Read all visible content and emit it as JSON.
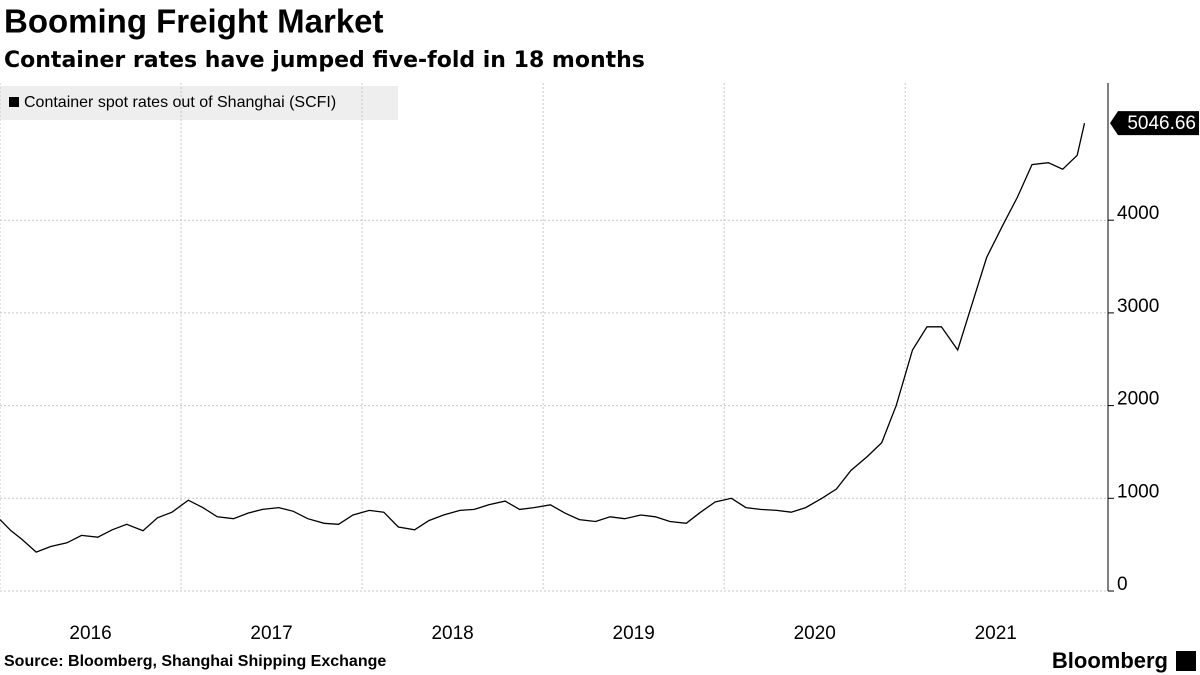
{
  "chart_data": {
    "type": "line",
    "title": "Booming Freight Market",
    "subtitle": "Container rates have jumped five-fold in 18 months",
    "source": "Source: Bloomberg, Shanghai Shipping Exchange",
    "brand": "Bloomberg",
    "x": [
      2016.0,
      2016.06,
      2016.12,
      2016.2,
      2016.28,
      2016.37,
      2016.45,
      2016.54,
      2016.62,
      2016.7,
      2016.79,
      2016.87,
      2016.95,
      2017.04,
      2017.12,
      2017.2,
      2017.29,
      2017.37,
      2017.45,
      2017.54,
      2017.62,
      2017.7,
      2017.79,
      2017.87,
      2017.95,
      2018.04,
      2018.12,
      2018.2,
      2018.29,
      2018.37,
      2018.45,
      2018.54,
      2018.62,
      2018.7,
      2018.79,
      2018.87,
      2018.95,
      2019.04,
      2019.12,
      2019.2,
      2019.29,
      2019.37,
      2019.45,
      2019.54,
      2019.62,
      2019.7,
      2019.79,
      2019.87,
      2019.95,
      2020.04,
      2020.12,
      2020.2,
      2020.29,
      2020.37,
      2020.45,
      2020.54,
      2020.62,
      2020.7,
      2020.79,
      2020.87,
      2020.95,
      2021.04,
      2021.12,
      2021.2,
      2021.29,
      2021.37,
      2021.45,
      2021.54,
      2021.62,
      2021.7,
      2021.79,
      2021.87,
      2021.95,
      2021.99
    ],
    "series": [
      {
        "name": "Container spot rates out of Shanghai (SCFI)",
        "color": "#000000",
        "values": [
          770,
          650,
          560,
          420,
          480,
          520,
          600,
          580,
          660,
          720,
          650,
          790,
          850,
          980,
          900,
          800,
          780,
          840,
          880,
          900,
          860,
          780,
          730,
          720,
          820,
          870,
          850,
          690,
          660,
          760,
          820,
          870,
          880,
          930,
          970,
          880,
          900,
          930,
          840,
          770,
          750,
          800,
          780,
          820,
          800,
          750,
          730,
          850,
          960,
          1000,
          900,
          880,
          870,
          850,
          900,
          1000,
          1100,
          1300,
          1450,
          1600,
          2000,
          2600,
          2850,
          2850,
          2600,
          3100,
          3600,
          3950,
          4250,
          4600,
          4620,
          4550,
          4700,
          5046.66
        ]
      }
    ],
    "xlim": [
      2016.0,
      2022.12
    ],
    "xticks": [
      2016,
      2017,
      2018,
      2019,
      2020,
      2021
    ],
    "ylim": [
      0,
      5480
    ],
    "yticks": [
      0,
      1000,
      2000,
      3000,
      4000
    ],
    "grid": true
  }
}
